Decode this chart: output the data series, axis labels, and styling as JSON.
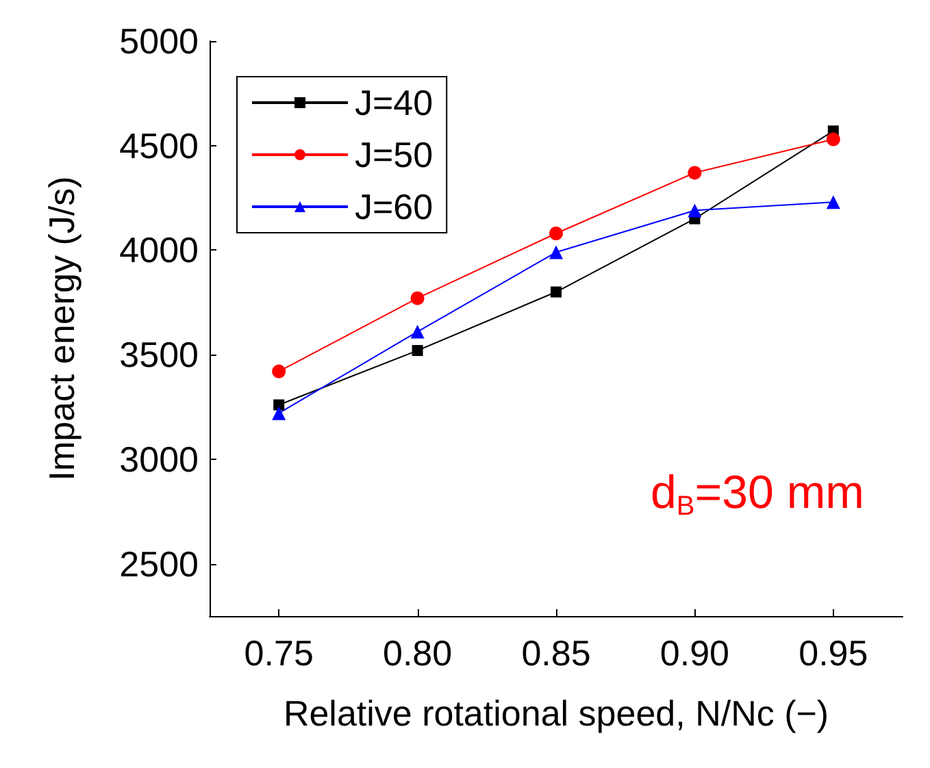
{
  "chart_data": {
    "type": "line",
    "xlabel": "Relative rotational speed, N/Nc (−)",
    "ylabel": "Impact energy (J/s)",
    "x": [
      0.75,
      0.8,
      0.85,
      0.9,
      0.95
    ],
    "series": [
      {
        "name": "J=40",
        "color": "#000000",
        "marker": "square",
        "values": [
          3260,
          3520,
          3800,
          4150,
          4570
        ]
      },
      {
        "name": "J=50",
        "color": "#ff0000",
        "marker": "circle",
        "values": [
          3420,
          3770,
          4080,
          4370,
          4530
        ]
      },
      {
        "name": "J=60",
        "color": "#0000ff",
        "marker": "triangle",
        "values": [
          3220,
          3610,
          3990,
          4190,
          4230
        ]
      }
    ],
    "xlim": [
      0.725,
      0.975
    ],
    "xticks": [
      {
        "value": 0.75,
        "label": "0.75"
      },
      {
        "value": 0.8,
        "label": "0.80"
      },
      {
        "value": 0.85,
        "label": "0.85"
      },
      {
        "value": 0.9,
        "label": "0.90"
      },
      {
        "value": 0.95,
        "label": "0.95"
      }
    ],
    "ylim": [
      2250,
      5000
    ],
    "yticks": [
      2500,
      3000,
      3500,
      4000,
      4500,
      5000
    ],
    "annotations": [
      "d$_{B}$=30 mm"
    ],
    "legend": "top left",
    "grid": false,
    "line_style": "solid"
  }
}
